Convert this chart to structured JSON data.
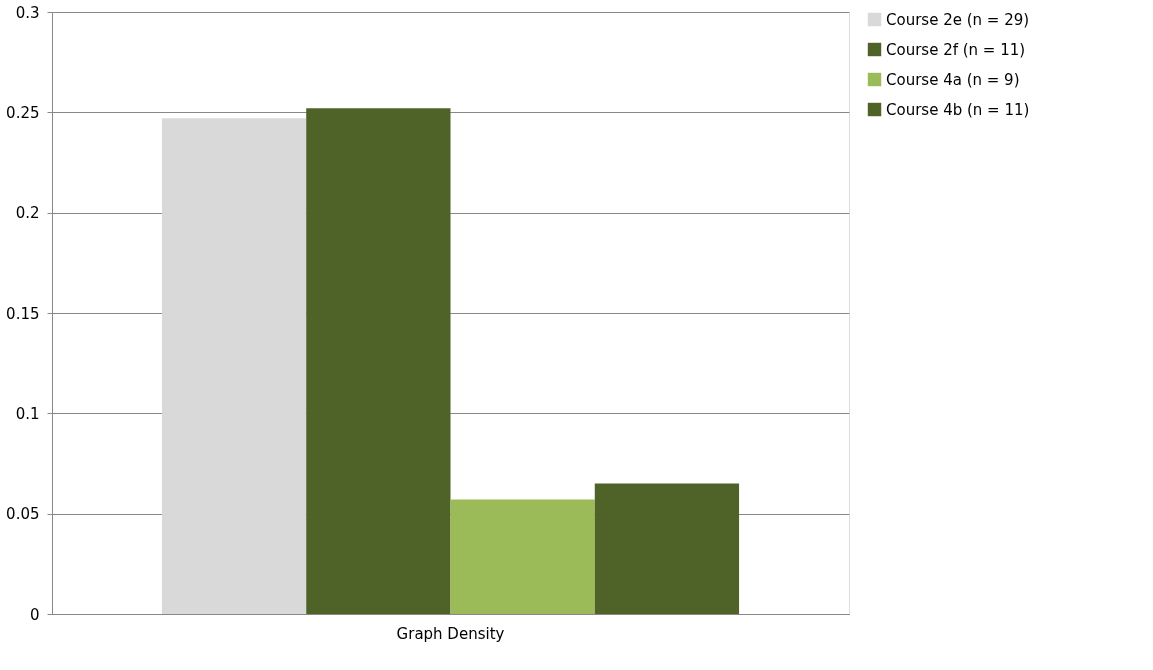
{
  "chart_data": {
    "type": "bar",
    "categories": [
      "Graph Density"
    ],
    "series": [
      {
        "name": "Course 2e (n = 29)",
        "color": "#d9d9d9",
        "values": [
          0.247
        ]
      },
      {
        "name": "Course 2f (n = 11)",
        "color": "#4f6228",
        "values": [
          0.252
        ]
      },
      {
        "name": "Course 4a (n = 9)",
        "color": "#9bbb59",
        "values": [
          0.057
        ]
      },
      {
        "name": "Course 4b (n = 11)",
        "color": "#4f6228",
        "values": [
          0.065
        ]
      }
    ],
    "ylim": [
      0,
      0.3
    ],
    "yticks": [
      0,
      0.05,
      0.1,
      0.15,
      0.2,
      0.25,
      0.3
    ],
    "grid": "y",
    "legend": "right"
  }
}
